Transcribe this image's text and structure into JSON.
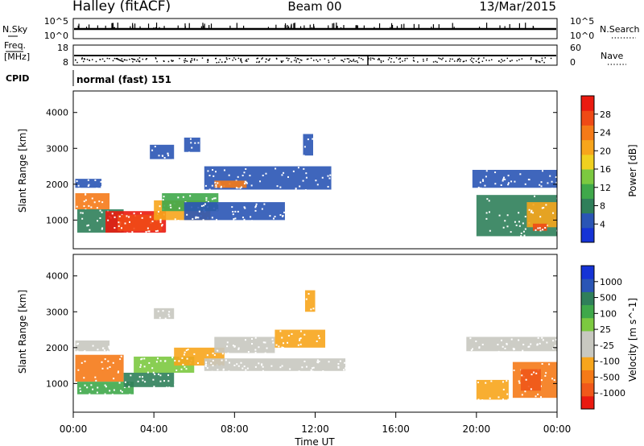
{
  "header": {
    "station": "Halley (fitACF)",
    "beam": "Beam 00",
    "date": "13/Mar/2015"
  },
  "strips": {
    "noise": {
      "label": "N.Sky",
      "y_ticks_left": [
        "10^5",
        "10^0"
      ],
      "y_ticks_right": [
        "10^5",
        "10^0"
      ],
      "right_label": "N.Search"
    },
    "freq": {
      "label_top": "Freq.",
      "label_unit": "[MHz]",
      "y_ticks_left": [
        "18",
        "8"
      ],
      "y_ticks_right": [
        "60",
        "0"
      ],
      "right_label": "Nave"
    },
    "cpid": {
      "label": "CPID",
      "value": "normal (fast) 151"
    }
  },
  "chart_data": [
    {
      "type": "heatmap",
      "quantity": "Power",
      "ylabel": "Slant Range [km]",
      "xlabel": "Time UT",
      "xlim": [
        "00:00",
        "24:00"
      ],
      "ylim": [
        200,
        4600
      ],
      "x_ticks": [
        "00:00",
        "04:00",
        "08:00",
        "12:00",
        "16:00",
        "20:00",
        "00:00"
      ],
      "y_ticks": [
        1000,
        2000,
        3000,
        4000
      ],
      "colorbar": {
        "label": "Power [dB]",
        "ticks": [
          "28",
          "24",
          "20",
          "16",
          "12",
          "8",
          "4"
        ],
        "colors": [
          "#1533d6",
          "#2a55b5",
          "#2f7f5a",
          "#3fa84a",
          "#7cc940",
          "#f0d020",
          "#f7a51c",
          "#f57a18",
          "#ef4a16",
          "#ea1a10"
        ]
      },
      "regions": [
        {
          "t0": 0.1,
          "t1": 1.4,
          "r0": 1900,
          "r1": 2150,
          "color": "#2a55b5"
        },
        {
          "t0": 0.1,
          "t1": 1.8,
          "r0": 1300,
          "r1": 1750,
          "color": "#f57a18"
        },
        {
          "t0": 0.2,
          "t1": 2.5,
          "r0": 650,
          "r1": 1300,
          "color": "#2f7f5a"
        },
        {
          "t0": 1.6,
          "t1": 4.6,
          "r0": 650,
          "r1": 1250,
          "color": "#ea1a10"
        },
        {
          "t0": 2.2,
          "t1": 4.4,
          "r0": 700,
          "r1": 1150,
          "color": "#ef4a16"
        },
        {
          "t0": 4.0,
          "t1": 6.8,
          "r0": 1000,
          "r1": 1550,
          "color": "#f7a51c"
        },
        {
          "t0": 4.4,
          "t1": 7.2,
          "r0": 1250,
          "r1": 1750,
          "color": "#3fa84a"
        },
        {
          "t0": 5.5,
          "t1": 10.5,
          "r0": 1000,
          "r1": 1500,
          "color": "#2a55b5"
        },
        {
          "t0": 6.5,
          "t1": 12.8,
          "r0": 1850,
          "r1": 2500,
          "color": "#2a55b5"
        },
        {
          "t0": 7.0,
          "t1": 8.6,
          "r0": 1900,
          "r1": 2100,
          "color": "#f57a18"
        },
        {
          "t0": 3.8,
          "t1": 5.0,
          "r0": 2700,
          "r1": 3100,
          "color": "#2a55b5"
        },
        {
          "t0": 5.5,
          "t1": 6.3,
          "r0": 2900,
          "r1": 3300,
          "color": "#2a55b5"
        },
        {
          "t0": 11.4,
          "t1": 11.9,
          "r0": 2800,
          "r1": 3400,
          "color": "#2a55b5"
        },
        {
          "t0": 19.8,
          "t1": 24.0,
          "r0": 1900,
          "r1": 2400,
          "color": "#2a55b5"
        },
        {
          "t0": 20.0,
          "t1": 24.0,
          "r0": 550,
          "r1": 1700,
          "color": "#2f7f5a"
        },
        {
          "t0": 22.5,
          "t1": 24.0,
          "r0": 800,
          "r1": 1500,
          "color": "#f7a51c"
        },
        {
          "t0": 22.8,
          "t1": 23.5,
          "r0": 700,
          "r1": 900,
          "color": "#ef4a16"
        }
      ]
    },
    {
      "type": "heatmap",
      "quantity": "Velocity",
      "ylabel": "Slant Range [km]",
      "xlabel": "Time UT",
      "xlim": [
        "00:00",
        "24:00"
      ],
      "ylim": [
        200,
        4600
      ],
      "x_ticks": [
        "00:00",
        "04:00",
        "08:00",
        "12:00",
        "16:00",
        "20:00",
        "00:00"
      ],
      "y_ticks": [
        1000,
        2000,
        3000,
        4000
      ],
      "colorbar": {
        "label": "Velocity [m s^-1]",
        "ticks": [
          "1000",
          "500",
          "100",
          "25",
          "-25",
          "-100",
          "-500",
          "-1000"
        ],
        "colors": [
          "#ea1a10",
          "#f0581a",
          "#f57a18",
          "#f7a51c",
          "#c8c8c0",
          "#c8c8c0",
          "#7cc940",
          "#3fa84a",
          "#2f7f5a",
          "#2a55b5",
          "#1533d6"
        ]
      },
      "regions": [
        {
          "t0": 0.1,
          "t1": 1.8,
          "r0": 1900,
          "r1": 2200,
          "color": "#c8c8c0"
        },
        {
          "t0": 0.1,
          "t1": 2.5,
          "r0": 1050,
          "r1": 1800,
          "color": "#f57a18"
        },
        {
          "t0": 0.2,
          "t1": 3.0,
          "r0": 700,
          "r1": 1050,
          "color": "#3fa84a"
        },
        {
          "t0": 2.5,
          "t1": 5.0,
          "r0": 900,
          "r1": 1300,
          "color": "#2f7f5a"
        },
        {
          "t0": 3.0,
          "t1": 6.0,
          "r0": 1300,
          "r1": 1750,
          "color": "#7cc940"
        },
        {
          "t0": 5.0,
          "t1": 7.5,
          "r0": 1500,
          "r1": 2000,
          "color": "#f7a51c"
        },
        {
          "t0": 7.0,
          "t1": 10.0,
          "r0": 1850,
          "r1": 2300,
          "color": "#c8c8c0"
        },
        {
          "t0": 10.0,
          "t1": 12.5,
          "r0": 2000,
          "r1": 2500,
          "color": "#f7a51c"
        },
        {
          "t0": 6.5,
          "t1": 13.5,
          "r0": 1350,
          "r1": 1700,
          "color": "#c8c8c0"
        },
        {
          "t0": 4.0,
          "t1": 5.0,
          "r0": 2800,
          "r1": 3100,
          "color": "#c8c8c0"
        },
        {
          "t0": 11.5,
          "t1": 12.0,
          "r0": 3000,
          "r1": 3600,
          "color": "#f7a51c"
        },
        {
          "t0": 19.5,
          "t1": 24.0,
          "r0": 1900,
          "r1": 2300,
          "color": "#c8c8c0"
        },
        {
          "t0": 20.0,
          "t1": 21.6,
          "r0": 550,
          "r1": 1100,
          "color": "#f7a51c"
        },
        {
          "t0": 21.8,
          "t1": 24.0,
          "r0": 600,
          "r1": 1600,
          "color": "#f57a18"
        },
        {
          "t0": 22.2,
          "t1": 23.2,
          "r0": 800,
          "r1": 1400,
          "color": "#f0581a"
        }
      ]
    }
  ]
}
